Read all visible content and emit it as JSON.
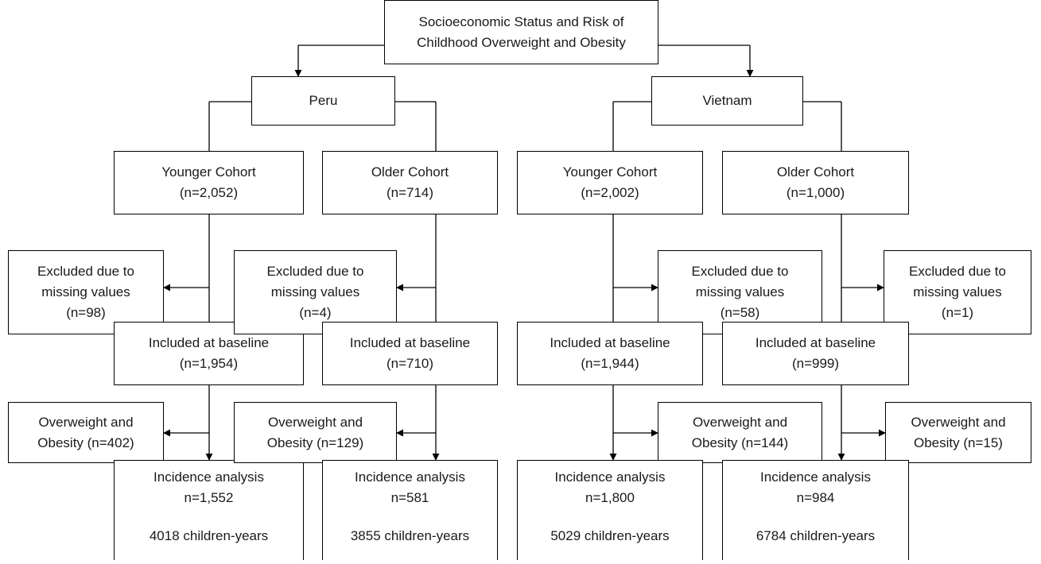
{
  "root": {
    "line1": "Socioeconomic Status and Risk of",
    "line2": "Childhood Overweight and Obesity"
  },
  "countries": {
    "peru": "Peru",
    "vietnam": "Vietnam"
  },
  "peru": {
    "younger": {
      "cohort": {
        "line1": "Younger Cohort",
        "line2": "(n=2,052)"
      },
      "excluded": {
        "line1": "Excluded due to",
        "line2": "missing values",
        "line3": "(n=98)"
      },
      "baseline": {
        "line1": "Included at baseline",
        "line2": "(n=1,954)"
      },
      "overweight": {
        "line1": "Overweight and",
        "line2": "Obesity (n=402)"
      },
      "incidence": {
        "line1": "Incidence analysis",
        "line2": "n=1,552",
        "line3": "4018 children-years"
      }
    },
    "older": {
      "cohort": {
        "line1": "Older Cohort",
        "line2": "(n=714)"
      },
      "excluded": {
        "line1": "Excluded due to",
        "line2": "missing values",
        "line3": "(n=4)"
      },
      "baseline": {
        "line1": "Included at baseline",
        "line2": "(n=710)"
      },
      "overweight": {
        "line1": "Overweight and",
        "line2": "Obesity (n=129)"
      },
      "incidence": {
        "line1": "Incidence analysis",
        "line2": "n=581",
        "line3": "3855 children-years"
      }
    }
  },
  "vietnam": {
    "younger": {
      "cohort": {
        "line1": "Younger Cohort",
        "line2": "(n=2,002)"
      },
      "excluded": {
        "line1": "Excluded due to",
        "line2": "missing values",
        "line3": "(n=58)"
      },
      "baseline": {
        "line1": "Included at baseline",
        "line2": "(n=1,944)"
      },
      "overweight": {
        "line1": "Overweight and",
        "line2": "Obesity (n=144)"
      },
      "incidence": {
        "line1": "Incidence analysis",
        "line2": "n=1,800",
        "line3": "5029 children-years"
      }
    },
    "older": {
      "cohort": {
        "line1": "Older Cohort",
        "line2": "(n=1,000)"
      },
      "excluded": {
        "line1": "Excluded due to",
        "line2": "missing values",
        "line3": "(n=1)"
      },
      "baseline": {
        "line1": "Included at baseline",
        "line2": "(n=999)"
      },
      "overweight": {
        "line1": "Overweight and",
        "line2": "Obesity (n=15)"
      },
      "incidence": {
        "line1": "Incidence analysis",
        "line2": "n=984",
        "line3": "6784 children-years"
      }
    }
  }
}
